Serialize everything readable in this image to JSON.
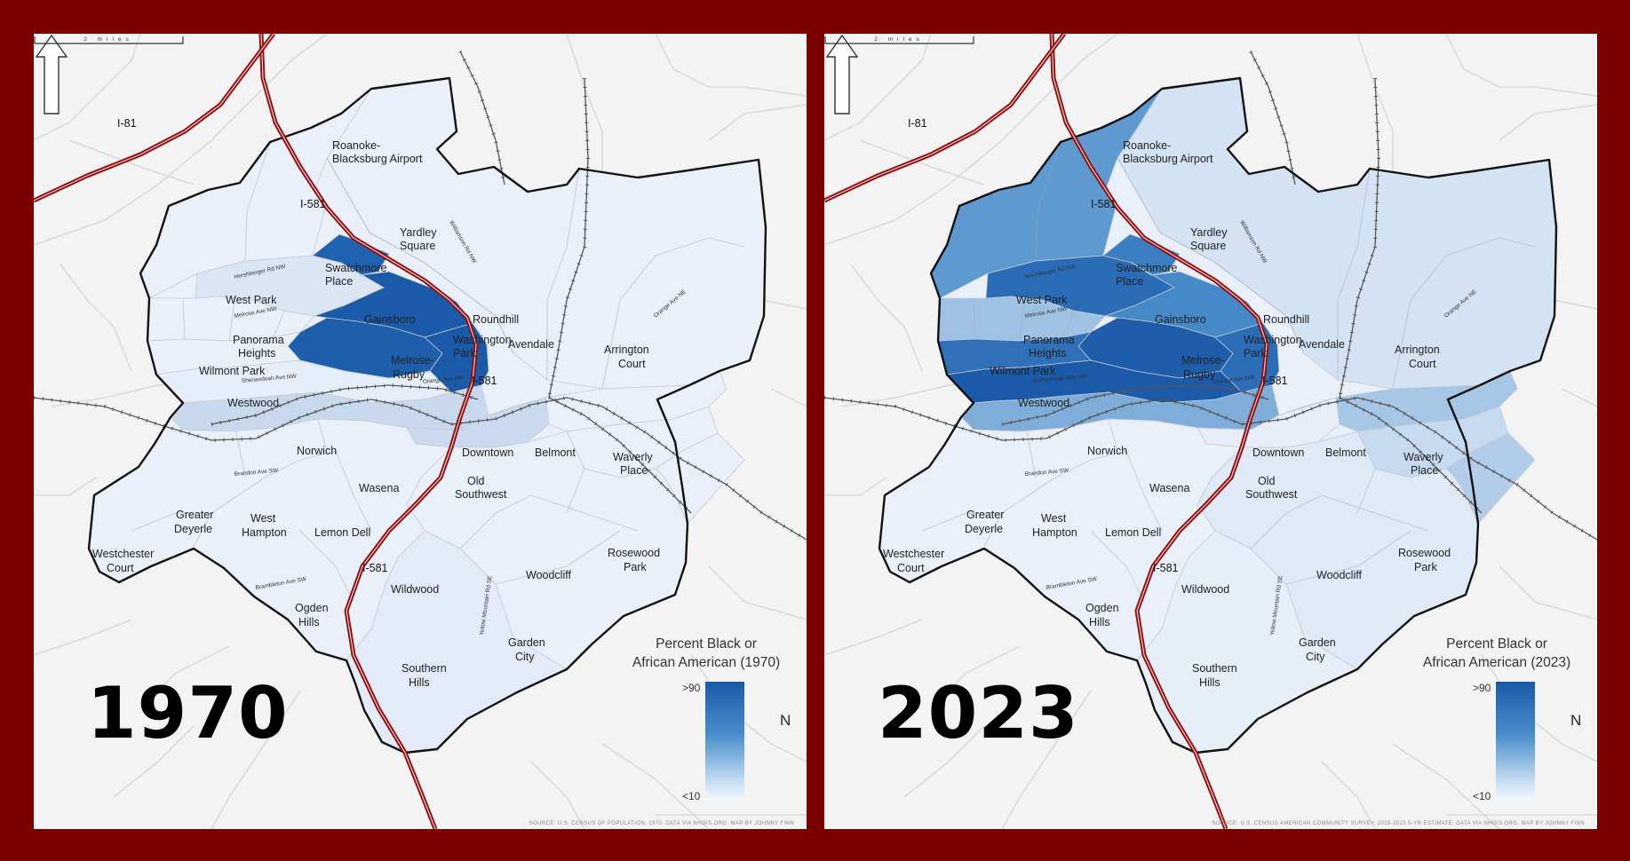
{
  "panels": [
    {
      "year": "1970",
      "legend_title_line1": "Percent Black or",
      "legend_title_line2": "African American (1970)",
      "legend_high": ">90",
      "legend_low": "<10",
      "source": "SOURCE: U.S. CENSUS OF POPULATION, 1970. DATA VIA NHGIS.ORG. MAP BY JOHNNY FINN",
      "shading": {
        "northwest": "#eaf0fa",
        "north": "#eaf0fa",
        "west_park": "#dbe6f4",
        "swarthmore": "#1f62b0",
        "gainsboro_core": "#1a5aa8",
        "melrose_rugby": "#1d5fab",
        "washington_park": "#1a5aa8",
        "panorama": "#e9f0fa",
        "wilmont": "#e9f0fa",
        "westwood_strip": "#e6eef9",
        "rail_corridor": "#c8d9ee",
        "downtown": "#c9daef",
        "east_belmont": "#eaf0fa",
        "waverly": "#eaf0fa",
        "rosewood": "#eaf0fa",
        "southeast": "#eaf0fa",
        "southern_hills": "#e2ebf7",
        "southwest": "#eaf0fa"
      }
    },
    {
      "year": "2023",
      "legend_title_line1": "Percent Black or",
      "legend_title_line2": "African American (2023)",
      "legend_high": ">90",
      "legend_low": "<10",
      "source": "SOURCE: U.S. CENSUS AMERICAN COMMUNITY SURVEY, 2019-2023 5-YR ESTIMATE. DATA VIA NHGIS.ORG. MAP BY JOHNNY FINN",
      "shading": {
        "northwest": "#5e9ad0",
        "north": "#d4e3f3",
        "west_park": "#2a6db6",
        "swarthmore": "#3b7ec2",
        "gainsboro_core": "#4589c8",
        "melrose_rugby": "#1e5da9",
        "washington_park": "#2b6db7",
        "panorama": "#9fc2e4",
        "wilmont": "#2f70b8",
        "westwood_strip": "#1a5aa8",
        "rail_corridor": "#7fadda",
        "downtown": "#e7eef8",
        "east_belmont": "#a6c6e6",
        "waverly": "#c6dbf0",
        "rosewood": "#b2cde9",
        "southeast": "#e0e9f6",
        "southern_hills": "#e6eef8",
        "southwest": "#eaf0fa"
      }
    }
  ],
  "map": {
    "scale_label": "2 miles",
    "north_label": "N",
    "highways": {
      "i81": "I-81",
      "i581_north": "I-581",
      "i581_central": "I-581",
      "i581_south": "I-581"
    },
    "neighborhoods": {
      "airport_line1": "Roanoke-",
      "airport_line2": "Blacksburg Airport",
      "yardley_line1": "Yardley",
      "yardley_line2": "Square",
      "swarthmore_line1": "Swatchmore",
      "swarthmore_line2": "Place",
      "west_park": "West Park",
      "gainsboro": "Gainsboro",
      "roundhill": "Roundhill",
      "panorama_line1": "Panorama",
      "panorama_line2": "Heights",
      "washington_line1": "Washington",
      "washington_line2": "Park",
      "avendale": "Avendale",
      "arrington_line1": "Arrington",
      "arrington_line2": "Court",
      "wilmont_park": "Wilmont Park",
      "melrose_line1": "Melrose-",
      "melrose_line2": "Rugby",
      "westwood": "Westwood",
      "norwich": "Norwich",
      "downtown": "Downtown",
      "belmont": "Belmont",
      "waverly_line1": "Waverly",
      "waverly_line2": "Place",
      "wasena": "Wasena",
      "old_sw_line1": "Old",
      "old_sw_line2": "Southwest",
      "greater_line1": "Greater",
      "greater_line2": "Deyerle",
      "west_hampton_line1": "West",
      "west_hampton_line2": "Hampton",
      "lemon_dell": "Lemon Dell",
      "westchester_line1": "Westchester",
      "westchester_line2": "Court",
      "rosewood_line1": "Rosewood",
      "rosewood_line2": "Park",
      "woodcliff": "Woodcliff",
      "wildwood": "Wildwood",
      "ogden_line1": "Ogden",
      "ogden_line2": "Hills",
      "garden_line1": "Garden",
      "garden_line2": "City",
      "southern_line1": "Southern",
      "southern_line2": "Hills"
    },
    "streets": {
      "hershberger": "Hershberger Rd NW",
      "melrose_ave": "Melrose Ave NW",
      "shenandoah": "Shenandoah Ave NW",
      "orange_ave_ne": "Orange Ave NE",
      "orange_ave_nw": "Orange Ave NW",
      "williamson": "Williamson Rd NW",
      "brandon": "Brandon Ave SW",
      "brambleton": "Brambleton Ave SW",
      "yellow_mountain": "Yellow Mountain Rd SE"
    }
  }
}
